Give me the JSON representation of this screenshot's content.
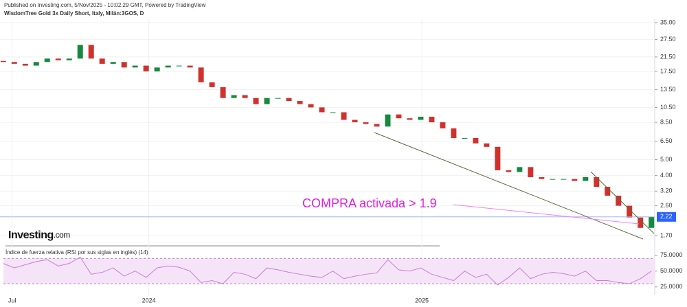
{
  "header": {
    "published": "Published on Investing.com, 5/Nov/2025 - 10:02:29 GMT, Powered by TradingView",
    "symbol": "WisdomTree Gold 3x Daily Short, Italy, Milán:3GOS, D"
  },
  "logo": {
    "brand": "Investing",
    "suffix": ".com"
  },
  "chart_data": [
    {
      "type": "candlestick",
      "log_scale": true,
      "grid": true,
      "up_color": "#138a3e",
      "down_color": "#d0312d",
      "annotation": "COMPRA activada > 1.9",
      "last_price": {
        "value": 2.22,
        "label": "2.22"
      },
      "x": [
        0,
        1,
        2,
        3,
        4,
        5,
        6,
        7,
        8,
        9,
        10,
        11,
        12,
        13,
        14,
        15,
        16,
        17,
        18,
        19,
        20,
        21,
        22,
        23,
        24,
        25,
        26,
        27,
        28,
        29,
        30,
        31,
        32,
        33,
        34,
        35,
        36,
        37,
        38,
        39,
        40,
        41,
        42,
        43,
        44,
        45,
        46,
        47,
        48,
        49,
        50,
        51,
        52,
        53,
        54,
        55,
        56,
        57,
        58,
        59
      ],
      "open": [
        20.3,
        20,
        19.5,
        19,
        20,
        21,
        20.5,
        21,
        25.5,
        21,
        19.5,
        20,
        18.5,
        19,
        17.5,
        18.5,
        19,
        19,
        18.5,
        15,
        14,
        12,
        12.5,
        12,
        11,
        12,
        12,
        11.5,
        11,
        10.5,
        9.8,
        9.8,
        8.8,
        8.5,
        8.3,
        8,
        9.5,
        9,
        8.8,
        9.2,
        8.5,
        7.8,
        6.8,
        6.8,
        6.3,
        6,
        4.3,
        4.2,
        4.5,
        3.9,
        3.8,
        3.8,
        3.8,
        3.7,
        3.9,
        3.4,
        3,
        2.6,
        2.2,
        1.9
      ],
      "close": [
        20,
        19.5,
        19,
        20,
        21,
        20.5,
        21,
        25.5,
        21,
        19.5,
        20,
        18.5,
        19,
        17.5,
        18.5,
        19,
        19,
        18.5,
        15,
        14,
        12,
        12.5,
        12,
        11,
        12,
        12,
        11.5,
        11,
        10.5,
        9.8,
        9.8,
        8.8,
        8.5,
        8.3,
        8,
        9.5,
        9,
        8.8,
        9.2,
        8.5,
        7.8,
        6.8,
        6.8,
        6.3,
        6,
        4.3,
        4.2,
        4.5,
        3.9,
        3.8,
        3.8,
        3.8,
        3.7,
        3.9,
        3.4,
        3,
        2.6,
        2.2,
        1.9,
        2.22
      ],
      "xlim": [
        -0.3,
        59.3
      ],
      "xticks": [
        {
          "value": 0.8,
          "label": "Jul"
        },
        {
          "value": 13.25,
          "label": "2024"
        },
        {
          "value": 38.1,
          "label": "2025"
        }
      ],
      "ylim": [
        1.5,
        36
      ],
      "yticks": [
        {
          "value": 35,
          "label": "35.00"
        },
        {
          "value": 27.5,
          "label": "27.50"
        },
        {
          "value": 21.5,
          "label": "21.50"
        },
        {
          "value": 17.5,
          "label": "17.50"
        },
        {
          "value": 13.5,
          "label": "13.50"
        },
        {
          "value": 10.5,
          "label": "10.50"
        },
        {
          "value": 8.5,
          "label": "8.50"
        },
        {
          "value": 6.5,
          "label": "6.50"
        },
        {
          "value": 5,
          "label": "5.00"
        },
        {
          "value": 4,
          "label": "4.00"
        },
        {
          "value": 3.2,
          "label": "3.20"
        },
        {
          "value": 2.6,
          "label": "2.60"
        },
        {
          "value": 1.7,
          "label": "1.70"
        }
      ]
    },
    {
      "type": "line",
      "title": "Índice de fuerza relativa (RSI por sus siglas en inglés) (14)",
      "color": "#c77dd6",
      "band_color": "#f5e4f8",
      "bands": [
        30,
        70
      ],
      "values": [
        62,
        55,
        60,
        65,
        68,
        58,
        62,
        72,
        45,
        48,
        55,
        42,
        50,
        40,
        55,
        58,
        56,
        50,
        32,
        35,
        30,
        48,
        45,
        38,
        55,
        52,
        48,
        45,
        42,
        40,
        50,
        38,
        42,
        45,
        47,
        68,
        52,
        50,
        55,
        45,
        40,
        35,
        50,
        40,
        45,
        28,
        40,
        55,
        38,
        45,
        48,
        46,
        42,
        50,
        35,
        35,
        32,
        30,
        38,
        50
      ],
      "ylim": [
        15,
        80
      ],
      "yticks": [
        {
          "value": 75,
          "label": "75.0000"
        },
        {
          "value": 50,
          "label": "50.0000"
        },
        {
          "value": 25,
          "label": "25.0000"
        }
      ]
    }
  ]
}
